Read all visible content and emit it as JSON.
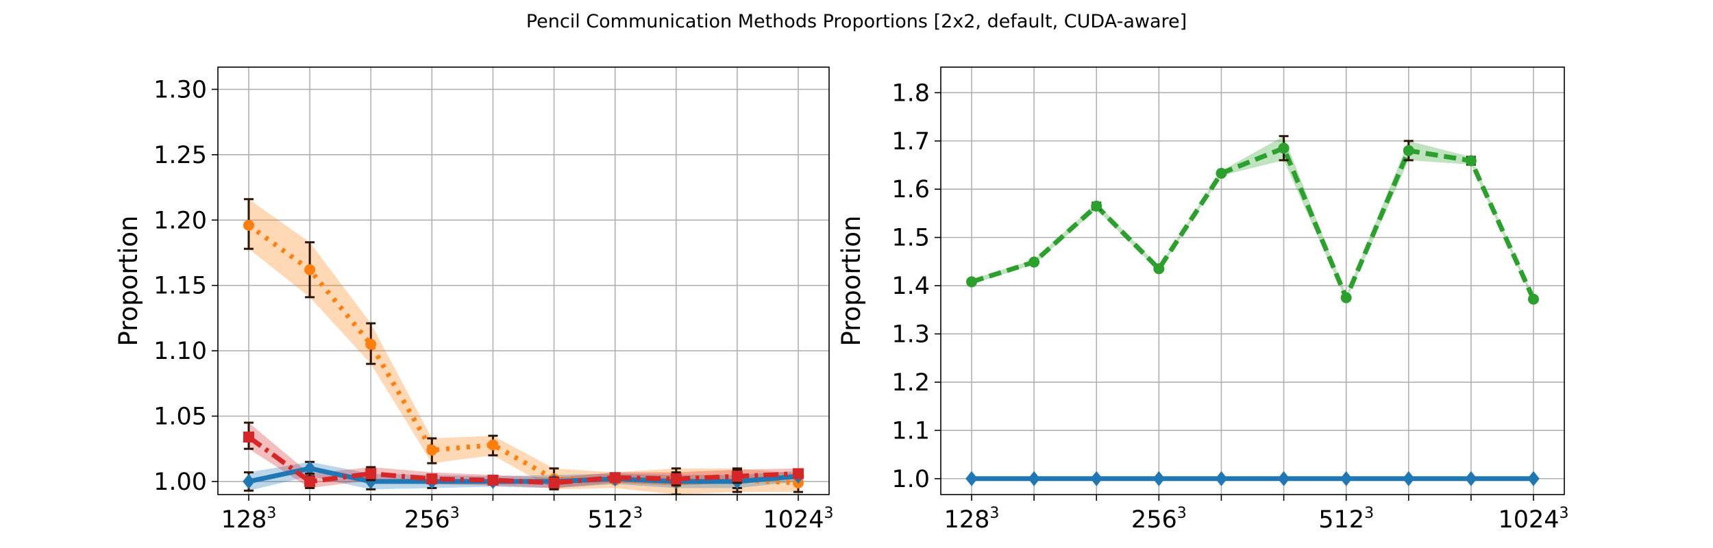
{
  "chart_data": {
    "title": "Pencil Communication Methods Proportions [2x2, default, CUDA-aware]",
    "panels": [
      {
        "type": "line",
        "ylabel": "Proportion",
        "ylim": [
          0.99,
          1.317
        ],
        "yticks": [
          "1.00",
          "1.05",
          "1.10",
          "1.15",
          "1.20",
          "1.25",
          "1.30"
        ],
        "ytick_values": [
          1.0,
          1.05,
          1.1,
          1.15,
          1.2,
          1.25,
          1.3
        ],
        "x": [
          128,
          160,
          192,
          256,
          320,
          384,
          512,
          640,
          768,
          1024
        ],
        "xticks": [
          {
            "base": "128",
            "exp": "3"
          },
          {
            "base": "256",
            "exp": "3"
          },
          {
            "base": "512",
            "exp": "3"
          },
          {
            "base": "1024",
            "exp": "3"
          }
        ],
        "xtick_indices": [
          0,
          3,
          6,
          9
        ],
        "grid": true,
        "series": [
          {
            "color": "#ff7f0e",
            "style": "dotted",
            "marker": "circle",
            "values": [
              1.196,
              1.162,
              1.105,
              1.024,
              1.028,
              1.002,
              1.001,
              0.999,
              1.001,
              0.999
            ],
            "band_low": [
              1.178,
              1.141,
              1.09,
              1.014,
              1.02,
              0.994,
              0.995,
              0.99,
              0.992,
              0.992
            ],
            "band_high": [
              1.216,
              1.183,
              1.121,
              1.033,
              1.035,
              1.01,
              1.007,
              1.01,
              1.01,
              1.006
            ],
            "errorbars": [
              1,
              1,
              1,
              1,
              1,
              1,
              0,
              1,
              1,
              1
            ]
          },
          {
            "color": "#1f77b4",
            "style": "solid",
            "marker": "diamond",
            "values": [
              1.0,
              1.01,
              1.0,
              1.0,
              1.0,
              1.0,
              1.002,
              1.0,
              1.0,
              1.004
            ],
            "band_low": [
              0.993,
              1.004,
              0.994,
              0.995,
              0.996,
              0.995,
              0.998,
              0.995,
              0.995,
              1.0
            ],
            "band_high": [
              1.007,
              1.015,
              1.006,
              1.005,
              1.004,
              1.005,
              1.006,
              1.005,
              1.005,
              1.008
            ],
            "errorbars": [
              1,
              1,
              1,
              1,
              0,
              0,
              0,
              0,
              1,
              0
            ]
          },
          {
            "color": "#d62728",
            "style": "dashdot",
            "marker": "square",
            "values": [
              1.034,
              1.0,
              1.006,
              1.002,
              1.001,
              0.999,
              1.003,
              1.002,
              1.004,
              1.006
            ],
            "band_low": [
              1.025,
              0.995,
              1.001,
              0.998,
              0.997,
              0.995,
              0.999,
              0.997,
              0.999,
              1.002
            ],
            "band_high": [
              1.045,
              1.006,
              1.011,
              1.007,
              1.005,
              1.003,
              1.007,
              1.007,
              1.009,
              1.01
            ],
            "errorbars": [
              1,
              1,
              1,
              0,
              0,
              1,
              0,
              1,
              1,
              0
            ]
          }
        ]
      },
      {
        "type": "line",
        "ylabel": "Proportion",
        "ylim": [
          0.967,
          1.853
        ],
        "yticks": [
          "1.0",
          "1.1",
          "1.2",
          "1.3",
          "1.4",
          "1.5",
          "1.6",
          "1.7",
          "1.8"
        ],
        "ytick_values": [
          1.0,
          1.1,
          1.2,
          1.3,
          1.4,
          1.5,
          1.6,
          1.7,
          1.8
        ],
        "x": [
          128,
          160,
          192,
          256,
          320,
          384,
          512,
          640,
          768,
          1024
        ],
        "xticks": [
          {
            "base": "128",
            "exp": "3"
          },
          {
            "base": "256",
            "exp": "3"
          },
          {
            "base": "512",
            "exp": "3"
          },
          {
            "base": "1024",
            "exp": "3"
          }
        ],
        "xtick_indices": [
          0,
          3,
          6,
          9
        ],
        "grid": true,
        "series": [
          {
            "color": "#2ca02c",
            "style": "dashed",
            "marker": "circle",
            "values": [
              1.408,
              1.449,
              1.565,
              1.435,
              1.633,
              1.685,
              1.375,
              1.68,
              1.659,
              1.372
            ],
            "band_low": [
              1.403,
              1.444,
              1.558,
              1.43,
              1.628,
              1.66,
              1.369,
              1.66,
              1.651,
              1.367
            ],
            "band_high": [
              1.413,
              1.454,
              1.572,
              1.44,
              1.638,
              1.71,
              1.381,
              1.7,
              1.667,
              1.377
            ],
            "errorbars": [
              0,
              0,
              1,
              0,
              0,
              1,
              0,
              1,
              1,
              0
            ]
          },
          {
            "color": "#1f77b4",
            "style": "solid",
            "marker": "diamond",
            "values": [
              1.0,
              1.0,
              1.0,
              1.0,
              1.0,
              1.0,
              1.0,
              1.0,
              1.0,
              1.0
            ],
            "band_low": [
              0.998,
              0.998,
              0.998,
              0.998,
              0.998,
              0.998,
              0.998,
              0.998,
              0.998,
              0.998
            ],
            "band_high": [
              1.002,
              1.002,
              1.002,
              1.002,
              1.002,
              1.002,
              1.002,
              1.002,
              1.002,
              1.002
            ],
            "errorbars": [
              0,
              0,
              0,
              0,
              0,
              0,
              0,
              0,
              0,
              0
            ]
          }
        ]
      }
    ]
  }
}
